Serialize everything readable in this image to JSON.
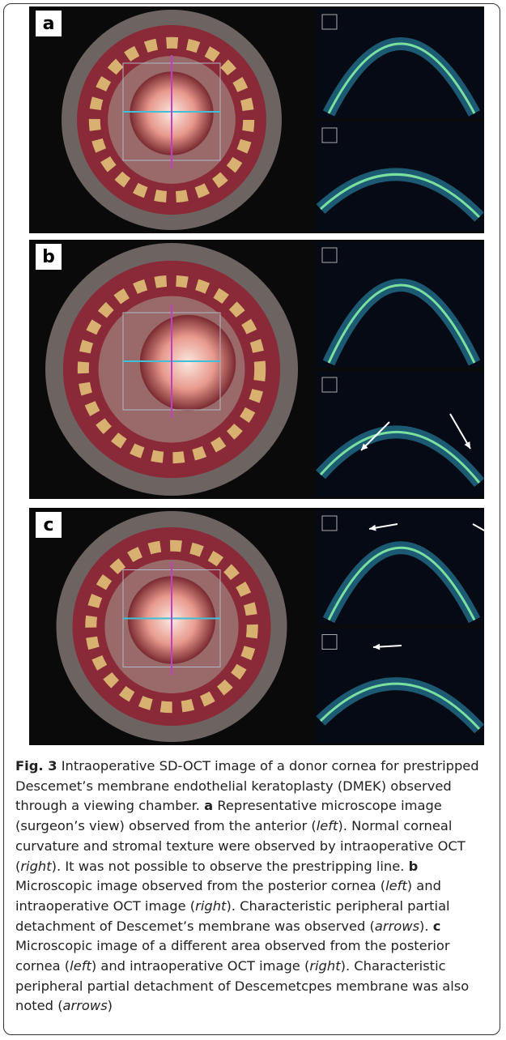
{
  "figure": {
    "panels": [
      {
        "label": "a"
      },
      {
        "label": "b"
      },
      {
        "label": "c"
      }
    ]
  },
  "caption": {
    "runs": [
      {
        "text": "Fig. 3",
        "style": "bold"
      },
      {
        "text": " Intraoperative SD-OCT image of a donor cornea for prestripped Descemet’s membrane endothelial keratoplasty (DMEK) observed through a viewing chamber. "
      },
      {
        "text": "a",
        "style": "bold"
      },
      {
        "text": " Representative microscope image (surgeon’s view) observed from the anterior ("
      },
      {
        "text": "left",
        "style": "italic"
      },
      {
        "text": "). Normal corneal curvature and stromal texture were observed by intraoperative OCT ("
      },
      {
        "text": "right",
        "style": "italic"
      },
      {
        "text": "). It was not possible to observe the prestripping line. "
      },
      {
        "text": "b",
        "style": "bold"
      },
      {
        "text": " Microscopic image observed from the posterior cornea ("
      },
      {
        "text": "left",
        "style": "italic"
      },
      {
        "text": ") and intraoperative OCT image ("
      },
      {
        "text": "right",
        "style": "italic"
      },
      {
        "text": "). Characteristic peripheral partial detachment of Descemet’s membrane was observed ("
      },
      {
        "text": "arrows",
        "style": "italic"
      },
      {
        "text": "). "
      },
      {
        "text": "c",
        "style": "bold"
      },
      {
        "text": " Microscopic image of a different area observed from the posterior cornea ("
      },
      {
        "text": "left",
        "style": "italic"
      },
      {
        "text": ") and intraoperative OCT image ("
      },
      {
        "text": "right",
        "style": "italic"
      },
      {
        "text": "). Characteristic peripheral partial detachment of Descemetcpes membrane was also noted ("
      },
      {
        "text": "arrows",
        "style": "italic"
      },
      {
        "text": ")"
      }
    ]
  }
}
